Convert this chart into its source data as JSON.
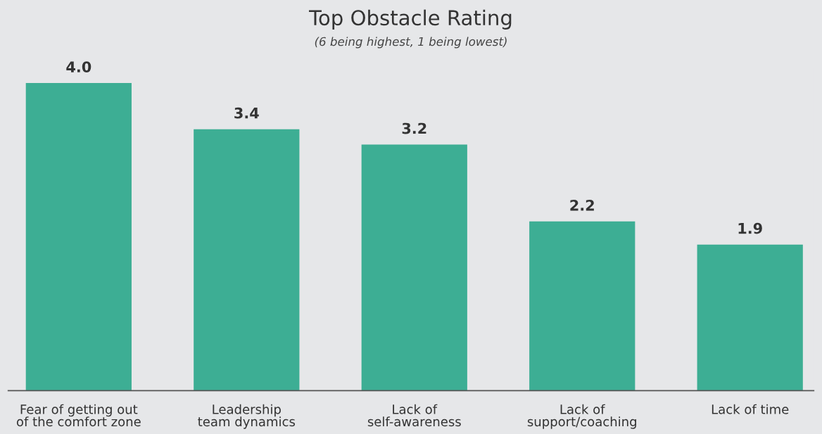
{
  "chart_data": {
    "type": "bar",
    "title": "Top Obstacle Rating",
    "subtitle": "(6 being highest, 1 being lowest)",
    "categories": [
      "Fear of getting out\nof the comfort zone",
      "Leadership\nteam dynamics",
      "Lack of\nself-awareness",
      "Lack of\nsupport/coaching",
      "Lack of time"
    ],
    "values": [
      4.0,
      3.4,
      3.2,
      2.2,
      1.9
    ],
    "value_labels": [
      "4.0",
      "3.4",
      "3.2",
      "2.2",
      "1.9"
    ],
    "color": "#3dae94",
    "grid": false,
    "legend": false,
    "tick_labels": "x"
  }
}
